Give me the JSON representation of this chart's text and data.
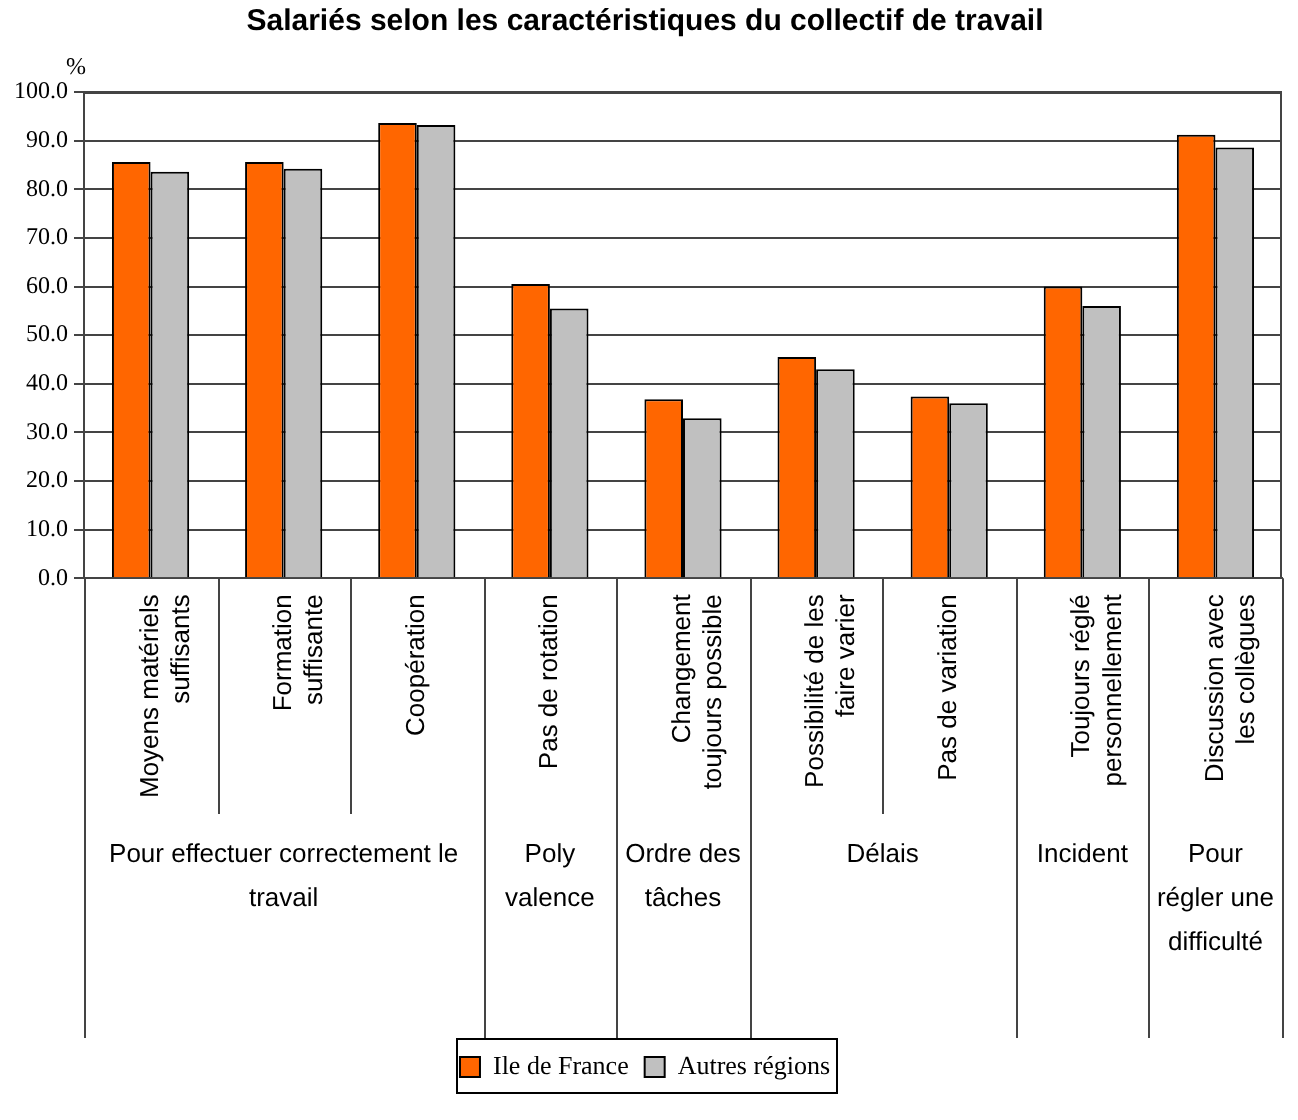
{
  "chart_data": {
    "type": "bar",
    "title": "Salariés selon les caractéristiques du collectif de travail",
    "ylabel": "%",
    "categories": [
      "Moyens matériels suffisants",
      "Formation suffisante",
      "Coopération",
      "Pas de rotation",
      "Changement toujours possible",
      "Possibilité de les faire varier",
      "Pas de variation",
      "Toujours réglé personnellement",
      "Discussion avec les collègues"
    ],
    "series": [
      {
        "name": "Ile de France",
        "color": "#ff6600",
        "values": [
          85.6,
          85.6,
          93.6,
          60.5,
          36.8,
          45.5,
          37.4,
          60.0,
          91.2
        ]
      },
      {
        "name": "Autres régions",
        "color": "#c0c0c0",
        "values": [
          83.6,
          84.2,
          93.2,
          55.5,
          32.9,
          43.0,
          36.0,
          56.0,
          88.6
        ]
      }
    ],
    "annotations": [
      "Pour effectuer correctement le travail",
      "Poly valence",
      "Ordre des tâches",
      "Délais",
      "Incident",
      "Pour régler une difficulté"
    ],
    "ylim": [
      0,
      100
    ],
    "yticks": [
      {
        "value": 0,
        "label": "0.0"
      },
      {
        "value": 10,
        "label": "10.0"
      },
      {
        "value": 20,
        "label": "20.0"
      },
      {
        "value": 30,
        "label": "30.0"
      },
      {
        "value": 40,
        "label": "40.0"
      },
      {
        "value": 50,
        "label": "50.0"
      },
      {
        "value": 60,
        "label": "60.0"
      },
      {
        "value": 70,
        "label": "70.0"
      },
      {
        "value": 80,
        "label": "80.0"
      },
      {
        "value": 90,
        "label": "90.0"
      },
      {
        "value": 100,
        "label": "100.0"
      }
    ],
    "grid": "y",
    "legend": "bottom"
  }
}
